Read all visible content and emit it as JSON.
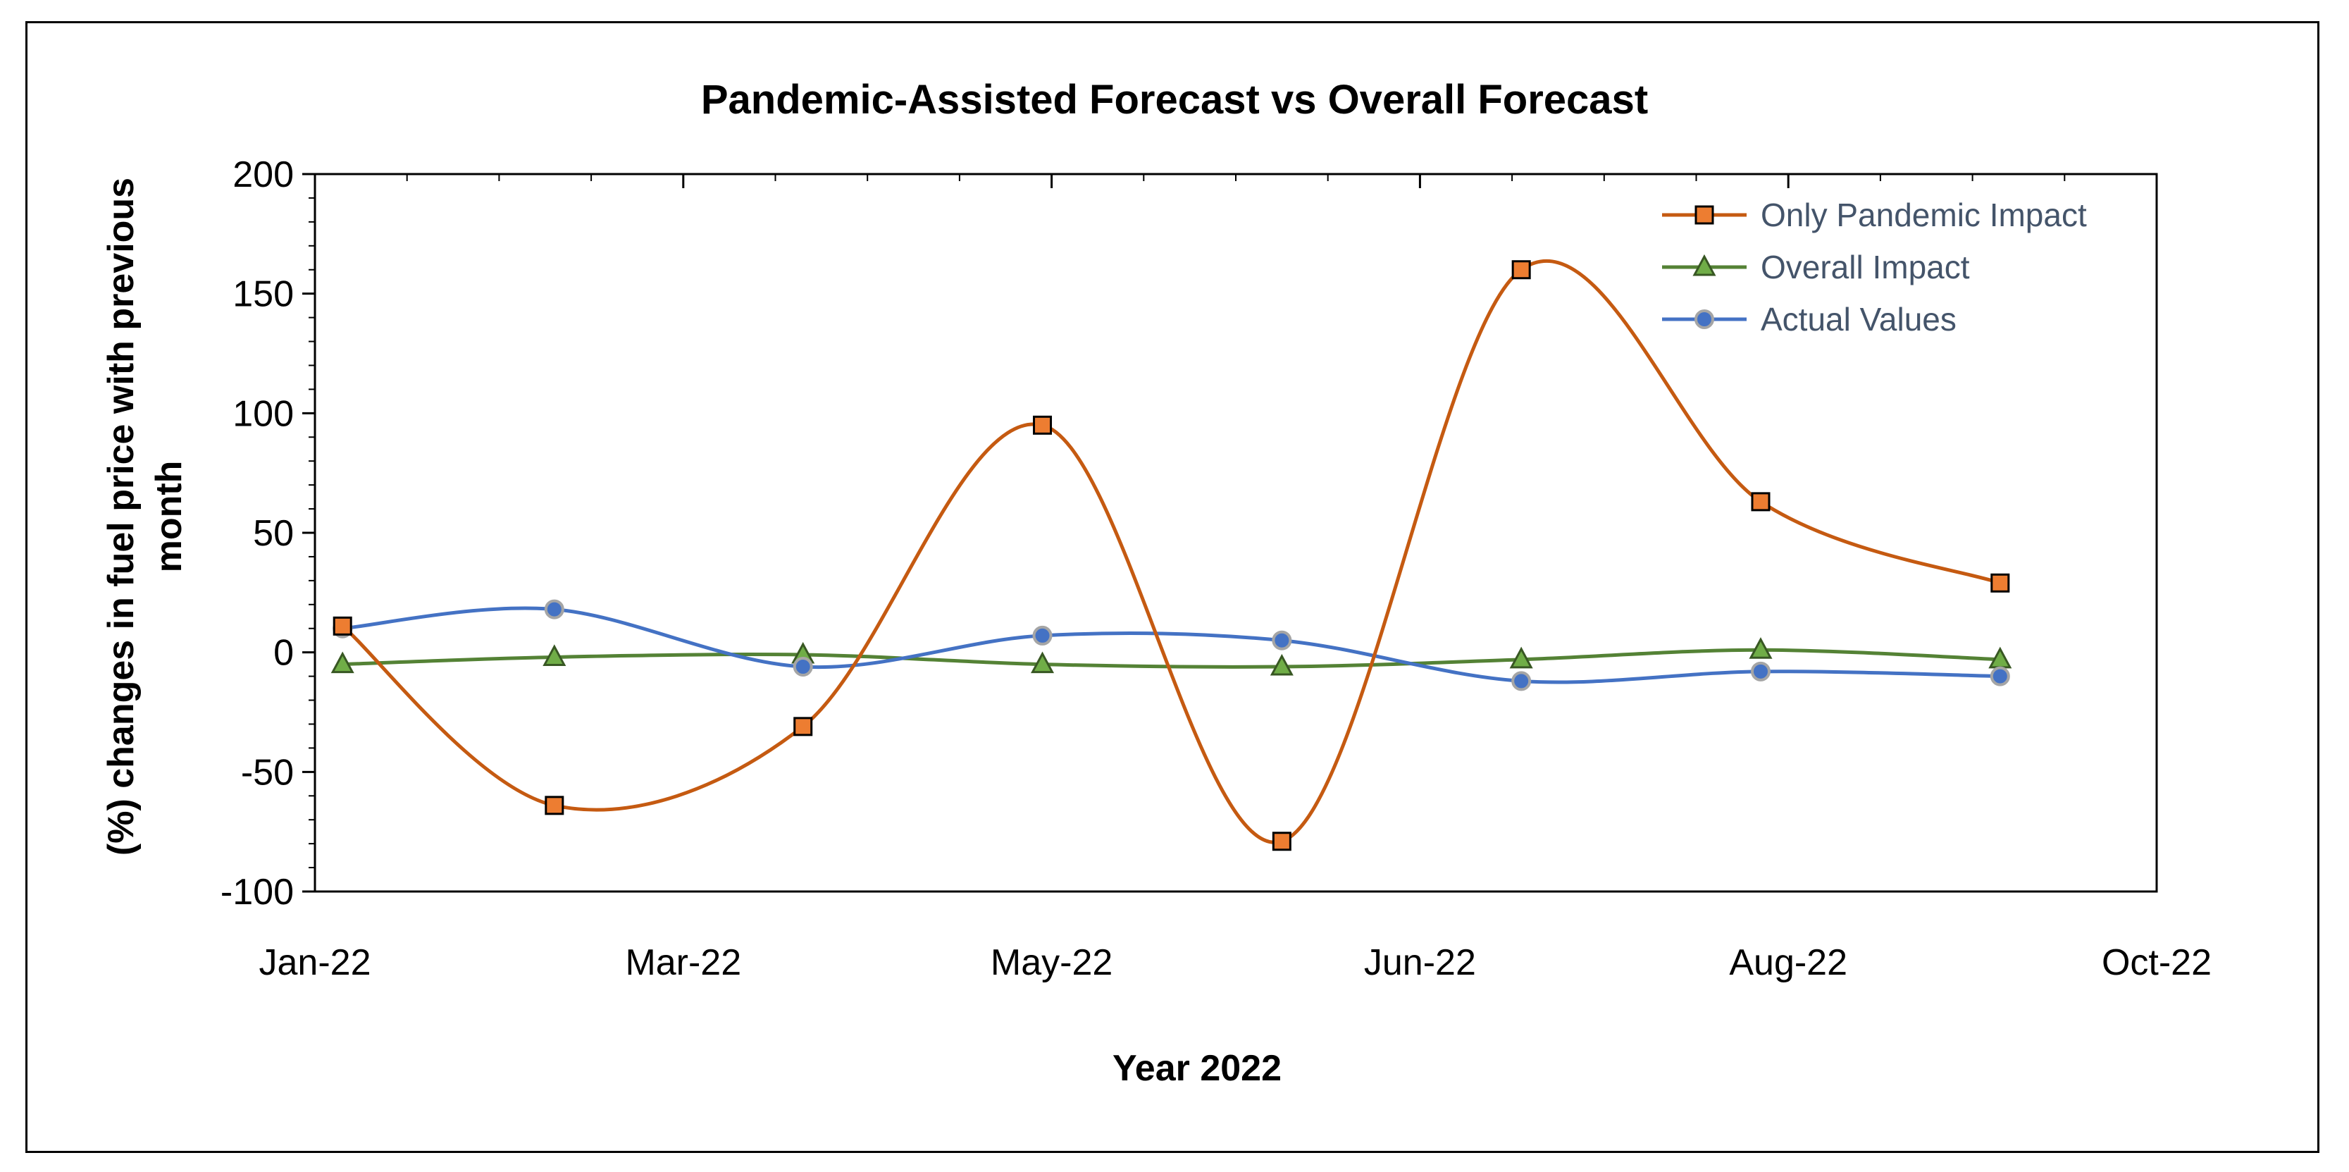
{
  "chart_data": {
    "type": "line",
    "title": "Pandemic-Assisted Forecast vs Overall Forecast",
    "xlabel": "Year 2022",
    "ylabel_lines": [
      "(%) changes in fuel price with previous",
      "month"
    ],
    "x_tick_labels": [
      "Jan-22",
      "Mar-22",
      "May-22",
      "Jun-22",
      "Aug-22",
      "Oct-22"
    ],
    "x_tick_positions": [
      0,
      2,
      4,
      6,
      8,
      10
    ],
    "xlim": [
      0,
      10
    ],
    "ylim": [
      -100,
      200
    ],
    "y_ticks": [
      -100,
      -50,
      0,
      50,
      100,
      150,
      200
    ],
    "x": [
      0.15,
      1.3,
      2.65,
      3.95,
      5.25,
      6.55,
      7.85,
      9.15
    ],
    "series": [
      {
        "name": "Only Pandemic  Impact",
        "color": "#c55a11",
        "marker": "square",
        "marker_fill": "#ed7d31",
        "values": [
          11,
          -64,
          -31,
          95,
          -79,
          160,
          63,
          29
        ]
      },
      {
        "name": "Overall Impact",
        "color": "#548235",
        "marker": "triangle",
        "marker_fill": "#70ad47",
        "values": [
          -5,
          -2,
          -1,
          -5,
          -6,
          -3,
          1,
          -3
        ]
      },
      {
        "name": "Actual Values",
        "color": "#4472c4",
        "marker": "circle",
        "marker_fill": "#4472c4",
        "values": [
          10,
          18,
          -6,
          7,
          5,
          -12,
          -8,
          -10
        ]
      }
    ],
    "grid": false,
    "legend_position": "top-right"
  }
}
